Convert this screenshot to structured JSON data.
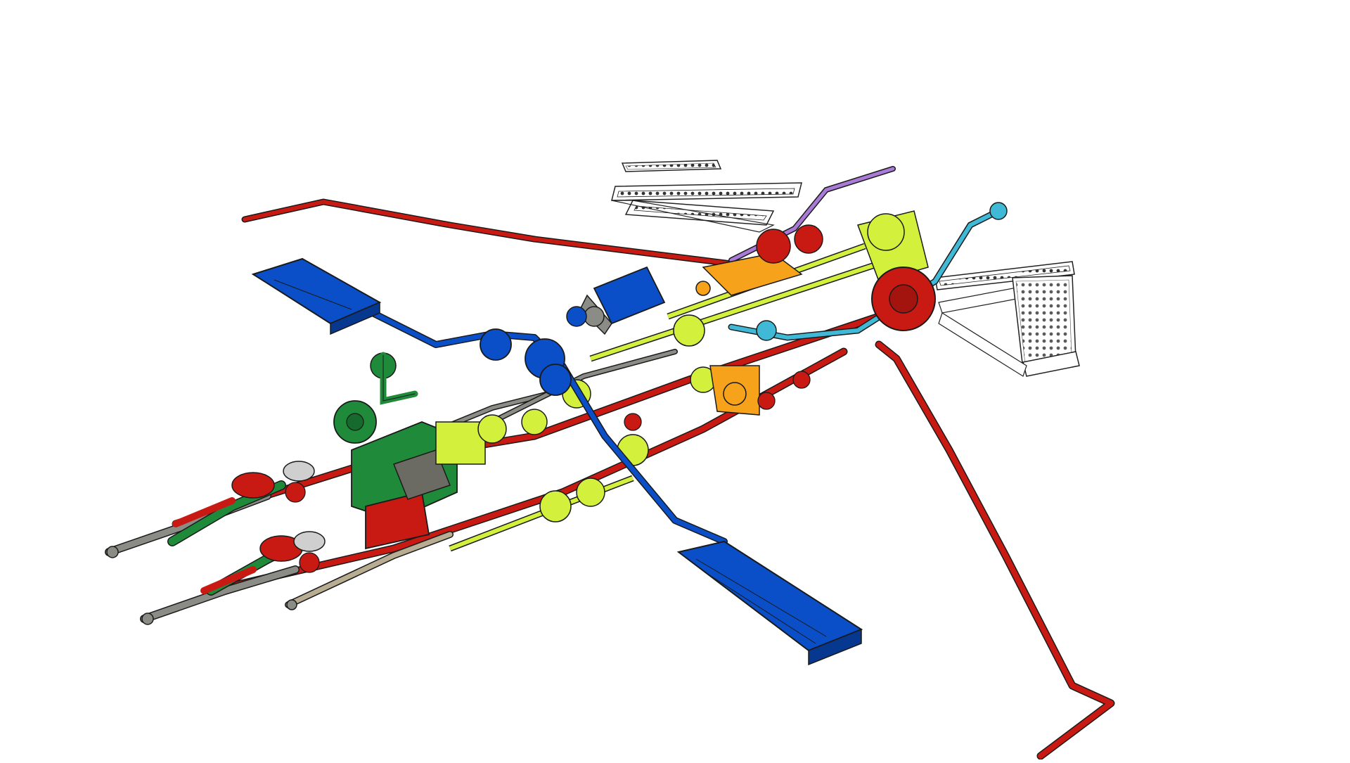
{
  "colors": {
    "background": "#ffffff",
    "red": "#c81a12",
    "blue": "#0a4fc7",
    "green": "#1f8a3a",
    "lime": "#d2f03c",
    "orange": "#f7a21b",
    "cyan": "#3fb9d6",
    "purple": "#a97bd6",
    "gray": "#8c8c86",
    "tan": "#b8ad92",
    "white": "#ffffff",
    "outline": "#1a1a1a"
  },
  "assembly": {
    "icon": "mechanical-assembly-diagram",
    "parts": [
      {
        "name": "red-driveshaft-rear",
        "color": "red"
      },
      {
        "name": "red-driveshaft-right",
        "color": "red"
      },
      {
        "name": "blue-pedal-left",
        "color": "blue"
      },
      {
        "name": "blue-pedal-right",
        "color": "blue"
      },
      {
        "name": "blue-motor",
        "color": "blue"
      },
      {
        "name": "green-motor",
        "color": "green"
      },
      {
        "name": "lime-gear-train",
        "color": "lime"
      },
      {
        "name": "orange-gearbox",
        "color": "orange"
      },
      {
        "name": "cyan-linkage",
        "color": "cyan"
      },
      {
        "name": "purple-axle",
        "color": "purple"
      },
      {
        "name": "white-frame-left",
        "color": "white"
      },
      {
        "name": "white-frame-right",
        "color": "white"
      },
      {
        "name": "red-gear-hub",
        "color": "red"
      },
      {
        "name": "gray-steering-links",
        "color": "gray"
      }
    ]
  }
}
